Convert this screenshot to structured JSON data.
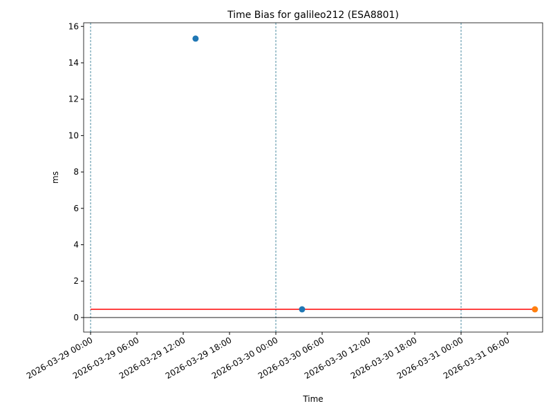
{
  "chart_data": {
    "type": "scatter",
    "title": "Time Bias for galileo212 (ESA8801)",
    "x_label": "Time",
    "y_label": "ms",
    "xlim": [
      "2026-03-28 23:06",
      "2026-03-31 10:34"
    ],
    "xticks": [
      "2026-03-29 00:00",
      "2026-03-29 06:00",
      "2026-03-29 12:00",
      "2026-03-29 18:00",
      "2026-03-30 00:00",
      "2026-03-30 06:00",
      "2026-03-30 12:00",
      "2026-03-30 18:00",
      "2026-03-31 00:00",
      "2026-03-31 06:00"
    ],
    "ylim": [
      -0.8,
      16.2
    ],
    "yticks": [
      0,
      2,
      4,
      6,
      8,
      10,
      12,
      14,
      16
    ],
    "series": [
      {
        "color": "#1f77b4",
        "x": [
          "2026-03-29 13:36",
          "2026-03-30 03:24"
        ],
        "values": [
          15.33,
          0.45
        ]
      },
      {
        "color": "#ff7f0e",
        "x": [
          "2026-03-31 09:34"
        ],
        "values": [
          0.45
        ]
      }
    ],
    "reference_line": {
      "color": "#ff0000",
      "x": [
        "2026-03-29 00:00",
        "2026-03-31 09:34"
      ],
      "values": [
        0.45,
        0.45
      ]
    },
    "vlines": {
      "color": "#1f6f8b",
      "x": [
        "2026-03-29 00:00",
        "2026-03-30 00:00",
        "2026-03-31 00:00"
      ]
    },
    "hline": {
      "color": "#000000",
      "value": 0
    }
  }
}
